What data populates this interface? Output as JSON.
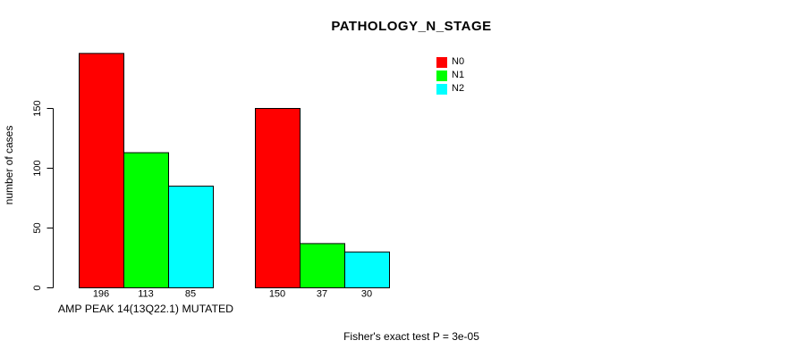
{
  "chart_data": {
    "type": "bar",
    "title": "PATHOLOGY_N_STAGE",
    "ylabel": "number of cases",
    "xlabel": "",
    "yticks": [
      0,
      50,
      100,
      150
    ],
    "ylim": [
      0,
      200
    ],
    "grid": false,
    "legend_position": "top-right",
    "series": [
      {
        "name": "N0",
        "color": "#ff0000"
      },
      {
        "name": "N1",
        "color": "#00ff00"
      },
      {
        "name": "N2",
        "color": "#00ffff"
      }
    ],
    "groups": [
      {
        "label": "AMP PEAK 14(13Q22.1) MUTATED",
        "values": [
          196,
          113,
          85
        ]
      },
      {
        "label": "",
        "values": [
          150,
          37,
          30
        ]
      }
    ],
    "bar_outline_color": "#000000",
    "footnote": "Fisher's exact test P = 3e-05"
  }
}
